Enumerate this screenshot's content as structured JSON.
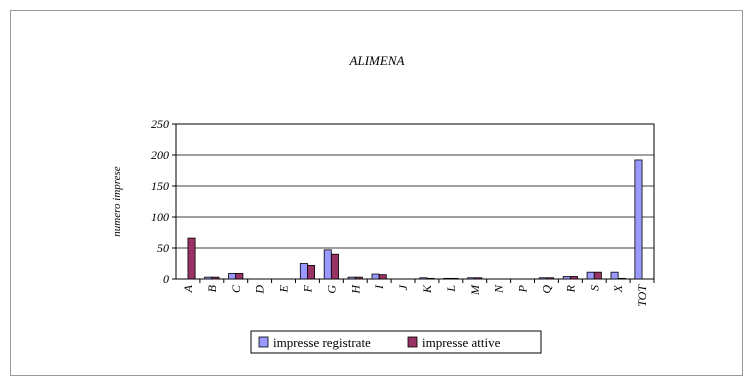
{
  "chart_data": {
    "type": "bar",
    "title": "ALIMENA",
    "xlabel": "",
    "ylabel": "numero imprese",
    "ylim": [
      0,
      250
    ],
    "yticks": [
      0,
      50,
      100,
      150,
      200,
      250
    ],
    "grid": true,
    "legend_position": "bottom",
    "categories": [
      "A",
      "B",
      "C",
      "D",
      "E",
      "F",
      "G",
      "H",
      "I",
      "J",
      "K",
      "L",
      "M",
      "N",
      "P",
      "Q",
      "R",
      "S",
      "X",
      "TOT"
    ],
    "series": [
      {
        "name": "impresse registrate",
        "color": "#9999ff",
        "values": [
          0,
          3,
          9,
          0,
          0,
          25,
          47,
          3,
          8,
          0,
          2,
          1,
          2,
          0,
          0,
          2,
          4,
          11,
          11,
          192
        ]
      },
      {
        "name": "impresse attive",
        "color": "#993366",
        "values": [
          66,
          3,
          9,
          0,
          0,
          22,
          40,
          3,
          7,
          0,
          1,
          1,
          2,
          0,
          0,
          2,
          4,
          11,
          1,
          0
        ]
      }
    ]
  }
}
